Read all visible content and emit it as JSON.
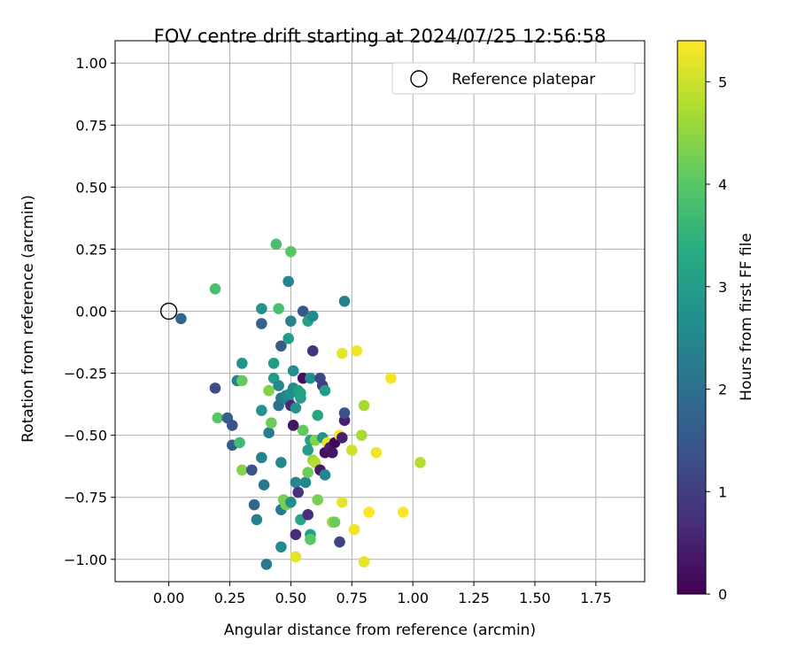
{
  "chart_data": {
    "type": "scatter",
    "title": "FOV centre drift starting at 2024/07/25 12:56:58",
    "xlabel": "Angular distance from reference (arcmin)",
    "ylabel": "Rotation from reference (arcmin)",
    "xlim": [
      -0.22,
      1.95
    ],
    "ylim": [
      -1.09,
      1.09
    ],
    "xticks": [
      "0.00",
      "0.25",
      "0.50",
      "0.75",
      "1.00",
      "1.25",
      "1.50",
      "1.75"
    ],
    "xtick_values": [
      0,
      0.25,
      0.5,
      0.75,
      1.0,
      1.25,
      1.5,
      1.75
    ],
    "yticks": [
      "1.00",
      "0.75",
      "0.50",
      "0.25",
      "0.00",
      "−0.25",
      "−0.50",
      "−0.75",
      "−1.00"
    ],
    "ytick_values": [
      1.0,
      0.75,
      0.5,
      0.25,
      0,
      -0.25,
      -0.5,
      -0.75,
      -1.0
    ],
    "grid": true,
    "legend": {
      "position": "top-right",
      "entries": [
        "Reference platepar"
      ]
    },
    "reference_point": {
      "x": 0,
      "y": 0,
      "label": "Reference platepar"
    },
    "colorbar": {
      "label": "Hours from first FF file",
      "colormap": "viridis",
      "range": [
        0,
        5.4
      ],
      "ticks": [
        "0",
        "1",
        "2",
        "3",
        "4",
        "5"
      ],
      "tick_values": [
        0,
        1,
        2,
        3,
        4,
        5
      ]
    },
    "points": [
      {
        "x": 0.05,
        "y": -0.03,
        "hours": 1.8
      },
      {
        "x": 0.19,
        "y": 0.09,
        "hours": 3.8
      },
      {
        "x": 0.19,
        "y": -0.31,
        "hours": 1.3
      },
      {
        "x": 0.2,
        "y": -0.43,
        "hours": 4.0
      },
      {
        "x": 0.24,
        "y": -0.43,
        "hours": 1.7
      },
      {
        "x": 0.26,
        "y": -0.46,
        "hours": 1.4
      },
      {
        "x": 0.26,
        "y": -0.54,
        "hours": 1.6
      },
      {
        "x": 0.28,
        "y": -0.28,
        "hours": 2.4
      },
      {
        "x": 0.29,
        "y": -0.53,
        "hours": 3.7
      },
      {
        "x": 0.3,
        "y": -0.28,
        "hours": 4.1
      },
      {
        "x": 0.3,
        "y": -0.21,
        "hours": 2.8
      },
      {
        "x": 0.3,
        "y": -0.64,
        "hours": 4.4
      },
      {
        "x": 0.34,
        "y": -0.64,
        "hours": 1.4
      },
      {
        "x": 0.35,
        "y": -0.78,
        "hours": 1.8
      },
      {
        "x": 0.36,
        "y": -0.84,
        "hours": 2.3
      },
      {
        "x": 0.38,
        "y": 0.01,
        "hours": 2.8
      },
      {
        "x": 0.38,
        "y": -0.05,
        "hours": 1.7
      },
      {
        "x": 0.38,
        "y": -0.4,
        "hours": 2.8
      },
      {
        "x": 0.38,
        "y": -0.59,
        "hours": 2.4
      },
      {
        "x": 0.39,
        "y": -0.7,
        "hours": 2.2
      },
      {
        "x": 0.4,
        "y": -1.02,
        "hours": 2.2
      },
      {
        "x": 0.41,
        "y": -0.49,
        "hours": 2.3
      },
      {
        "x": 0.41,
        "y": -0.32,
        "hours": 4.4
      },
      {
        "x": 0.42,
        "y": -0.45,
        "hours": 4.2
      },
      {
        "x": 0.43,
        "y": -0.21,
        "hours": 3.0
      },
      {
        "x": 0.43,
        "y": -0.27,
        "hours": 3.0
      },
      {
        "x": 0.44,
        "y": 0.27,
        "hours": 3.8
      },
      {
        "x": 0.45,
        "y": 0.01,
        "hours": 3.8
      },
      {
        "x": 0.45,
        "y": -0.3,
        "hours": 2.5
      },
      {
        "x": 0.45,
        "y": -0.38,
        "hours": 2.0
      },
      {
        "x": 0.46,
        "y": -0.14,
        "hours": 1.6
      },
      {
        "x": 0.46,
        "y": -0.35,
        "hours": 2.2
      },
      {
        "x": 0.46,
        "y": -0.61,
        "hours": 2.5
      },
      {
        "x": 0.46,
        "y": -0.8,
        "hours": 2.2
      },
      {
        "x": 0.46,
        "y": -0.95,
        "hours": 2.6
      },
      {
        "x": 0.47,
        "y": -0.76,
        "hours": 4.3
      },
      {
        "x": 0.48,
        "y": -0.78,
        "hours": 4.3
      },
      {
        "x": 0.48,
        "y": -0.34,
        "hours": 2.4
      },
      {
        "x": 0.49,
        "y": 0.12,
        "hours": 2.5
      },
      {
        "x": 0.49,
        "y": -0.11,
        "hours": 3.0
      },
      {
        "x": 0.49,
        "y": -0.36,
        "hours": 2.5
      },
      {
        "x": 0.5,
        "y": 0.24,
        "hours": 4.0
      },
      {
        "x": 0.5,
        "y": -0.04,
        "hours": 2.4
      },
      {
        "x": 0.5,
        "y": -0.38,
        "hours": 0.6
      },
      {
        "x": 0.5,
        "y": -0.33,
        "hours": 2.7
      },
      {
        "x": 0.5,
        "y": -0.77,
        "hours": 2.7
      },
      {
        "x": 0.51,
        "y": -0.24,
        "hours": 2.7
      },
      {
        "x": 0.51,
        "y": -0.31,
        "hours": 2.6
      },
      {
        "x": 0.51,
        "y": -0.46,
        "hours": 0.3
      },
      {
        "x": 0.52,
        "y": -0.39,
        "hours": 2.8
      },
      {
        "x": 0.52,
        "y": -0.69,
        "hours": 2.5
      },
      {
        "x": 0.52,
        "y": -0.9,
        "hours": 0.7
      },
      {
        "x": 0.52,
        "y": -0.99,
        "hours": 5.2
      },
      {
        "x": 0.53,
        "y": -0.73,
        "hours": 0.8
      },
      {
        "x": 0.53,
        "y": -0.32,
        "hours": 3.0
      },
      {
        "x": 0.54,
        "y": -0.35,
        "hours": 3.0
      },
      {
        "x": 0.54,
        "y": -0.33,
        "hours": 3.1
      },
      {
        "x": 0.54,
        "y": -0.84,
        "hours": 3.2
      },
      {
        "x": 0.55,
        "y": 0.0,
        "hours": 1.5
      },
      {
        "x": 0.55,
        "y": -0.27,
        "hours": 0.2
      },
      {
        "x": 0.55,
        "y": -0.48,
        "hours": 4.1
      },
      {
        "x": 0.56,
        "y": -0.69,
        "hours": 2.5
      },
      {
        "x": 0.57,
        "y": -0.82,
        "hours": 0.7
      },
      {
        "x": 0.57,
        "y": -0.04,
        "hours": 3.1
      },
      {
        "x": 0.57,
        "y": -0.56,
        "hours": 3.0
      },
      {
        "x": 0.57,
        "y": -0.65,
        "hours": 4.2
      },
      {
        "x": 0.58,
        "y": -0.27,
        "hours": 2.7
      },
      {
        "x": 0.58,
        "y": -0.52,
        "hours": 3.1
      },
      {
        "x": 0.58,
        "y": -0.9,
        "hours": 3.1
      },
      {
        "x": 0.58,
        "y": -0.92,
        "hours": 4.0
      },
      {
        "x": 0.59,
        "y": -0.16,
        "hours": 0.8
      },
      {
        "x": 0.59,
        "y": -0.02,
        "hours": 2.6
      },
      {
        "x": 0.59,
        "y": -0.6,
        "hours": 4.6
      },
      {
        "x": 0.6,
        "y": -0.52,
        "hours": 4.4
      },
      {
        "x": 0.6,
        "y": -0.61,
        "hours": 4.8
      },
      {
        "x": 0.61,
        "y": -0.42,
        "hours": 3.2
      },
      {
        "x": 0.61,
        "y": -0.76,
        "hours": 4.3
      },
      {
        "x": 0.62,
        "y": -0.27,
        "hours": 1.2
      },
      {
        "x": 0.62,
        "y": -0.64,
        "hours": 0.4
      },
      {
        "x": 0.63,
        "y": -0.51,
        "hours": 2.8
      },
      {
        "x": 0.63,
        "y": -0.3,
        "hours": 1.0
      },
      {
        "x": 0.64,
        "y": -0.32,
        "hours": 3.0
      },
      {
        "x": 0.64,
        "y": -0.57,
        "hours": 0.2
      },
      {
        "x": 0.64,
        "y": -0.66,
        "hours": 2.5
      },
      {
        "x": 0.65,
        "y": -0.53,
        "hours": 5.2
      },
      {
        "x": 0.66,
        "y": -0.55,
        "hours": 0.5
      },
      {
        "x": 0.67,
        "y": -0.85,
        "hours": 4.7
      },
      {
        "x": 0.67,
        "y": -0.57,
        "hours": 0.3
      },
      {
        "x": 0.68,
        "y": -0.53,
        "hours": 0.1
      },
      {
        "x": 0.68,
        "y": -0.85,
        "hours": 4.2
      },
      {
        "x": 0.7,
        "y": -0.5,
        "hours": 5.3
      },
      {
        "x": 0.7,
        "y": -0.93,
        "hours": 1.1
      },
      {
        "x": 0.71,
        "y": -0.17,
        "hours": 5.2
      },
      {
        "x": 0.71,
        "y": -0.51,
        "hours": 0.5
      },
      {
        "x": 0.71,
        "y": -0.77,
        "hours": 5.2
      },
      {
        "x": 0.72,
        "y": -0.44,
        "hours": 0.5
      },
      {
        "x": 0.72,
        "y": -0.41,
        "hours": 1.4
      },
      {
        "x": 0.72,
        "y": 0.04,
        "hours": 2.4
      },
      {
        "x": 0.75,
        "y": -0.56,
        "hours": 5.0
      },
      {
        "x": 0.76,
        "y": -0.88,
        "hours": 5.3
      },
      {
        "x": 0.77,
        "y": -0.16,
        "hours": 5.3
      },
      {
        "x": 0.79,
        "y": -0.5,
        "hours": 4.7
      },
      {
        "x": 0.8,
        "y": -0.38,
        "hours": 4.7
      },
      {
        "x": 0.8,
        "y": -1.01,
        "hours": 5.2
      },
      {
        "x": 0.82,
        "y": -0.81,
        "hours": 5.4
      },
      {
        "x": 0.85,
        "y": -0.57,
        "hours": 5.3
      },
      {
        "x": 0.91,
        "y": -0.27,
        "hours": 5.3
      },
      {
        "x": 0.96,
        "y": -0.81,
        "hours": 5.4
      },
      {
        "x": 1.03,
        "y": -0.61,
        "hours": 4.8
      }
    ]
  }
}
